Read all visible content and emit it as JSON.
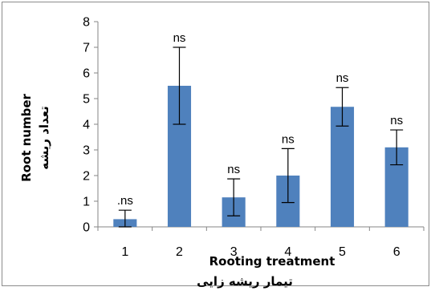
{
  "chart_data": {
    "type": "bar",
    "categories": [
      "1",
      "2",
      "3",
      "4",
      "5",
      "6"
    ],
    "values": [
      0.3,
      5.5,
      1.15,
      2.0,
      4.68,
      3.1
    ],
    "error": [
      0.35,
      1.5,
      0.72,
      1.05,
      0.75,
      0.68
    ],
    "annotations": [
      ".ns",
      "ns",
      "ns",
      "ns",
      "ns",
      "ns"
    ],
    "ylim": [
      0,
      8
    ],
    "yticks": [
      0,
      1,
      2,
      3,
      4,
      5,
      6,
      7,
      8
    ],
    "xlabel_en": "Rooting treatment",
    "xlabel_fa": "تیمار ریشه زایی",
    "ylabel_en": "Root number",
    "ylabel_fa": "تعداد ریشه",
    "bar_color": "#4f81bd",
    "grid": false
  }
}
